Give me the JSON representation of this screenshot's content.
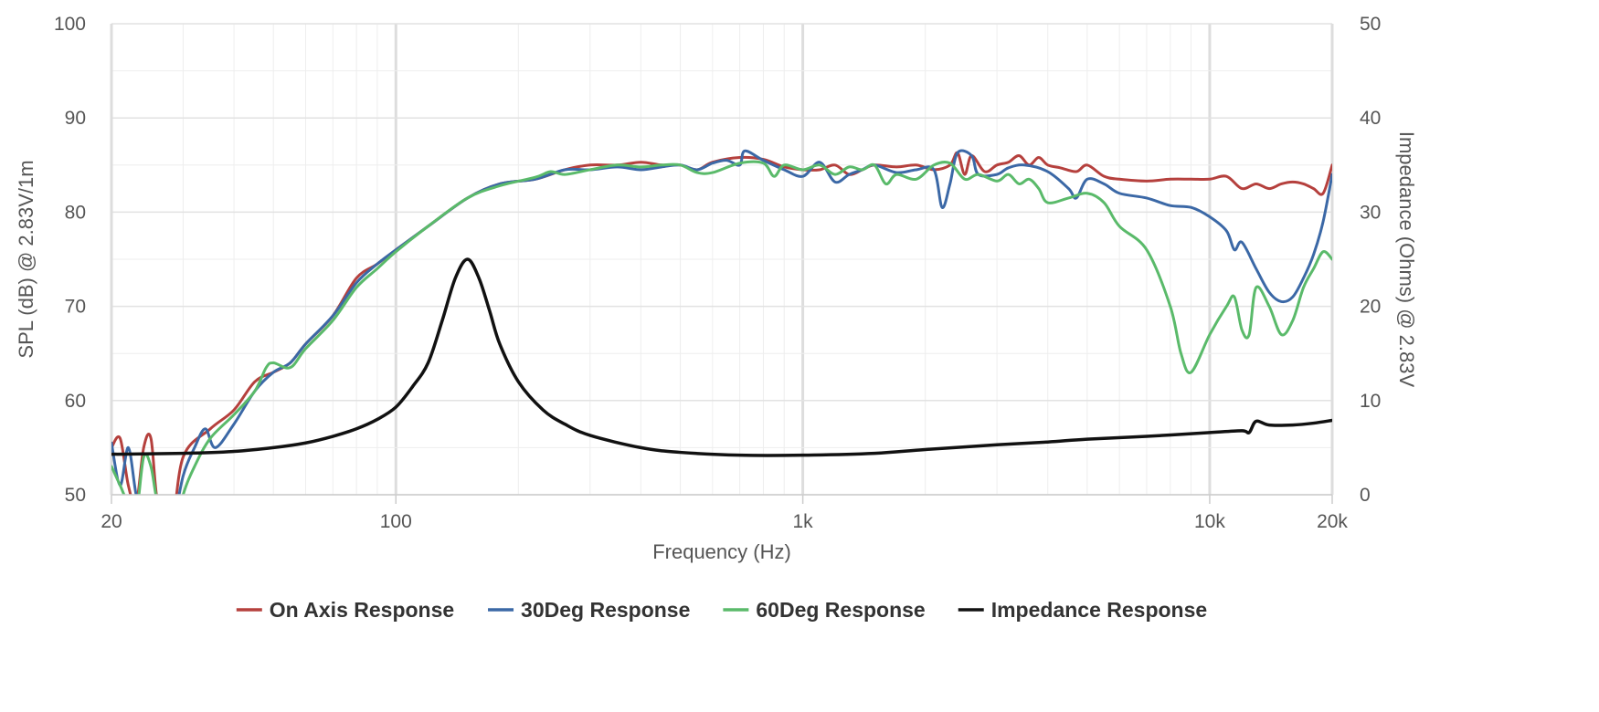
{
  "chart_data": {
    "type": "line",
    "x_axis": {
      "label": "Frequency (Hz)",
      "scale": "log",
      "range": [
        20,
        20000
      ],
      "ticks": [
        {
          "value": 20,
          "label": "20"
        },
        {
          "value": 100,
          "label": "100"
        },
        {
          "value": 1000,
          "label": "1k"
        },
        {
          "value": 10000,
          "label": "10k"
        },
        {
          "value": 20000,
          "label": "20k"
        }
      ]
    },
    "y_axis_left": {
      "label": "SPL (dB) @ 2.83V/1m",
      "range": [
        50,
        100
      ],
      "ticks": [
        50,
        60,
        70,
        80,
        90,
        100
      ]
    },
    "y_axis_right": {
      "label": "Impedance (Ohms) @ 2.83V",
      "range": [
        0,
        50
      ],
      "ticks": [
        0,
        10,
        20,
        30,
        40,
        50
      ]
    },
    "grid": true,
    "legend_position": "bottom",
    "series": [
      {
        "name": "On Axis Response",
        "color": "#b5403d",
        "axis": "left",
        "points": [
          [
            20,
            55
          ],
          [
            21,
            56
          ],
          [
            22,
            51
          ],
          [
            23,
            49
          ],
          [
            24,
            55
          ],
          [
            25,
            56
          ],
          [
            26,
            49
          ],
          [
            28,
            46
          ],
          [
            30,
            54
          ],
          [
            35,
            57
          ],
          [
            40,
            59
          ],
          [
            45,
            62
          ],
          [
            50,
            63
          ],
          [
            55,
            64
          ],
          [
            60,
            66
          ],
          [
            70,
            69
          ],
          [
            80,
            73
          ],
          [
            90,
            74.5
          ],
          [
            100,
            76
          ],
          [
            120,
            78.5
          ],
          [
            150,
            81.5
          ],
          [
            180,
            83
          ],
          [
            220,
            83.5
          ],
          [
            260,
            84.5
          ],
          [
            300,
            85
          ],
          [
            350,
            85
          ],
          [
            400,
            85.3
          ],
          [
            450,
            85
          ],
          [
            500,
            85
          ],
          [
            550,
            84.5
          ],
          [
            600,
            85.3
          ],
          [
            700,
            85.8
          ],
          [
            800,
            85.6
          ],
          [
            900,
            84.8
          ],
          [
            1000,
            84.5
          ],
          [
            1100,
            84.5
          ],
          [
            1200,
            85
          ],
          [
            1300,
            84
          ],
          [
            1400,
            84.5
          ],
          [
            1500,
            85
          ],
          [
            1700,
            84.8
          ],
          [
            1900,
            85
          ],
          [
            2100,
            84.5
          ],
          [
            2300,
            85
          ],
          [
            2400,
            86.3
          ],
          [
            2500,
            84
          ],
          [
            2600,
            86
          ],
          [
            2800,
            84.3
          ],
          [
            3000,
            85
          ],
          [
            3200,
            85.3
          ],
          [
            3400,
            86
          ],
          [
            3600,
            85
          ],
          [
            3800,
            85.8
          ],
          [
            4000,
            85
          ],
          [
            4300,
            84.7
          ],
          [
            4700,
            84.3
          ],
          [
            5000,
            85
          ],
          [
            5500,
            83.8
          ],
          [
            6000,
            83.5
          ],
          [
            7000,
            83.3
          ],
          [
            8000,
            83.5
          ],
          [
            9000,
            83.5
          ],
          [
            10000,
            83.5
          ],
          [
            11000,
            83.8
          ],
          [
            12000,
            82.5
          ],
          [
            13000,
            83
          ],
          [
            14000,
            82.5
          ],
          [
            15000,
            83
          ],
          [
            16000,
            83.2
          ],
          [
            17000,
            83
          ],
          [
            18000,
            82.5
          ],
          [
            19000,
            82
          ],
          [
            20000,
            85
          ]
        ]
      },
      {
        "name": "30Deg Response",
        "color": "#3b68a6",
        "axis": "left",
        "points": [
          [
            20,
            55.5
          ],
          [
            21,
            51
          ],
          [
            22,
            55
          ],
          [
            23,
            50
          ],
          [
            24,
            48
          ],
          [
            25,
            47
          ],
          [
            26,
            45
          ],
          [
            28,
            46
          ],
          [
            30,
            52
          ],
          [
            32,
            55
          ],
          [
            34,
            57
          ],
          [
            36,
            55
          ],
          [
            40,
            57.5
          ],
          [
            45,
            61
          ],
          [
            50,
            63
          ],
          [
            55,
            64
          ],
          [
            60,
            66
          ],
          [
            70,
            69
          ],
          [
            80,
            72.5
          ],
          [
            90,
            74.5
          ],
          [
            100,
            76
          ],
          [
            120,
            78.5
          ],
          [
            150,
            81.5
          ],
          [
            180,
            83
          ],
          [
            220,
            83.5
          ],
          [
            260,
            84.5
          ],
          [
            300,
            84.5
          ],
          [
            350,
            84.8
          ],
          [
            400,
            84.5
          ],
          [
            450,
            84.8
          ],
          [
            500,
            85
          ],
          [
            550,
            84.5
          ],
          [
            600,
            85.2
          ],
          [
            650,
            85.5
          ],
          [
            700,
            85
          ],
          [
            720,
            86.5
          ],
          [
            800,
            85.5
          ],
          [
            900,
            84.5
          ],
          [
            1000,
            83.8
          ],
          [
            1100,
            85.3
          ],
          [
            1200,
            83.2
          ],
          [
            1300,
            84
          ],
          [
            1400,
            84.5
          ],
          [
            1500,
            85
          ],
          [
            1700,
            84.2
          ],
          [
            1900,
            84.5
          ],
          [
            2100,
            84.5
          ],
          [
            2200,
            80.5
          ],
          [
            2300,
            83
          ],
          [
            2400,
            86.3
          ],
          [
            2600,
            86
          ],
          [
            2700,
            84
          ],
          [
            3000,
            84
          ],
          [
            3200,
            84.7
          ],
          [
            3500,
            85
          ],
          [
            4000,
            84.3
          ],
          [
            4500,
            82.5
          ],
          [
            4700,
            81.5
          ],
          [
            5000,
            83.5
          ],
          [
            5500,
            83
          ],
          [
            6000,
            82
          ],
          [
            7000,
            81.5
          ],
          [
            8000,
            80.7
          ],
          [
            9000,
            80.5
          ],
          [
            10000,
            79.5
          ],
          [
            11000,
            78
          ],
          [
            11500,
            76
          ],
          [
            12000,
            76.8
          ],
          [
            13000,
            74
          ],
          [
            14000,
            71.5
          ],
          [
            15000,
            70.5
          ],
          [
            16000,
            71
          ],
          [
            17000,
            73
          ],
          [
            18000,
            75.5
          ],
          [
            19000,
            79
          ],
          [
            20000,
            84
          ]
        ]
      },
      {
        "name": "60Deg Response",
        "color": "#5aba6a",
        "axis": "left",
        "points": [
          [
            20,
            53
          ],
          [
            21,
            51
          ],
          [
            22,
            49
          ],
          [
            23,
            48
          ],
          [
            24,
            54
          ],
          [
            25,
            53
          ],
          [
            26,
            49
          ],
          [
            28,
            45
          ],
          [
            30,
            50
          ],
          [
            32,
            53
          ],
          [
            35,
            56
          ],
          [
            40,
            58.5
          ],
          [
            45,
            61
          ],
          [
            48,
            63.5
          ],
          [
            50,
            64
          ],
          [
            55,
            63.5
          ],
          [
            60,
            65.5
          ],
          [
            70,
            68.5
          ],
          [
            80,
            72
          ],
          [
            90,
            74
          ],
          [
            100,
            75.8
          ],
          [
            120,
            78.5
          ],
          [
            150,
            81.5
          ],
          [
            180,
            82.8
          ],
          [
            220,
            83.7
          ],
          [
            240,
            84.3
          ],
          [
            260,
            84
          ],
          [
            300,
            84.5
          ],
          [
            350,
            85
          ],
          [
            400,
            84.8
          ],
          [
            450,
            85
          ],
          [
            500,
            85
          ],
          [
            550,
            84.2
          ],
          [
            600,
            84.2
          ],
          [
            700,
            85.2
          ],
          [
            800,
            85.2
          ],
          [
            850,
            83.8
          ],
          [
            900,
            85
          ],
          [
            1000,
            84.5
          ],
          [
            1100,
            85
          ],
          [
            1200,
            84
          ],
          [
            1300,
            84.8
          ],
          [
            1400,
            84.5
          ],
          [
            1500,
            85
          ],
          [
            1600,
            83
          ],
          [
            1700,
            84
          ],
          [
            1900,
            83.5
          ],
          [
            2100,
            85
          ],
          [
            2300,
            85.2
          ],
          [
            2500,
            83.5
          ],
          [
            2700,
            84
          ],
          [
            3000,
            83.3
          ],
          [
            3200,
            84
          ],
          [
            3400,
            83
          ],
          [
            3600,
            83.5
          ],
          [
            3800,
            82.5
          ],
          [
            4000,
            81
          ],
          [
            4500,
            81.5
          ],
          [
            5000,
            82
          ],
          [
            5500,
            81
          ],
          [
            6000,
            78.5
          ],
          [
            7000,
            76
          ],
          [
            8000,
            70
          ],
          [
            8500,
            65
          ],
          [
            9000,
            63
          ],
          [
            10000,
            67
          ],
          [
            11000,
            70
          ],
          [
            11500,
            71
          ],
          [
            12000,
            67.5
          ],
          [
            12500,
            67
          ],
          [
            13000,
            72
          ],
          [
            14000,
            70
          ],
          [
            15000,
            67
          ],
          [
            16000,
            68.5
          ],
          [
            17000,
            72
          ],
          [
            18000,
            74
          ],
          [
            19000,
            75.8
          ],
          [
            20000,
            75
          ]
        ]
      },
      {
        "name": "Impedance Response",
        "color": "#111111",
        "axis": "right",
        "points": [
          [
            20,
            4.3
          ],
          [
            30,
            4.4
          ],
          [
            40,
            4.6
          ],
          [
            50,
            5
          ],
          [
            60,
            5.5
          ],
          [
            70,
            6.2
          ],
          [
            80,
            7
          ],
          [
            90,
            8
          ],
          [
            100,
            9.3
          ],
          [
            110,
            11.5
          ],
          [
            120,
            14
          ],
          [
            130,
            18.5
          ],
          [
            140,
            23
          ],
          [
            150,
            25
          ],
          [
            160,
            23
          ],
          [
            170,
            19.5
          ],
          [
            180,
            16
          ],
          [
            200,
            12
          ],
          [
            230,
            9
          ],
          [
            260,
            7.5
          ],
          [
            300,
            6.3
          ],
          [
            400,
            5
          ],
          [
            500,
            4.5
          ],
          [
            700,
            4.2
          ],
          [
            1000,
            4.2
          ],
          [
            1500,
            4.4
          ],
          [
            2000,
            4.8
          ],
          [
            3000,
            5.3
          ],
          [
            4000,
            5.6
          ],
          [
            5000,
            5.9
          ],
          [
            7000,
            6.2
          ],
          [
            10000,
            6.6
          ],
          [
            12000,
            6.8
          ],
          [
            12500,
            6.6
          ],
          [
            13000,
            7.8
          ],
          [
            14000,
            7.4
          ],
          [
            16000,
            7.4
          ],
          [
            18000,
            7.6
          ],
          [
            20000,
            7.9
          ]
        ]
      }
    ]
  }
}
